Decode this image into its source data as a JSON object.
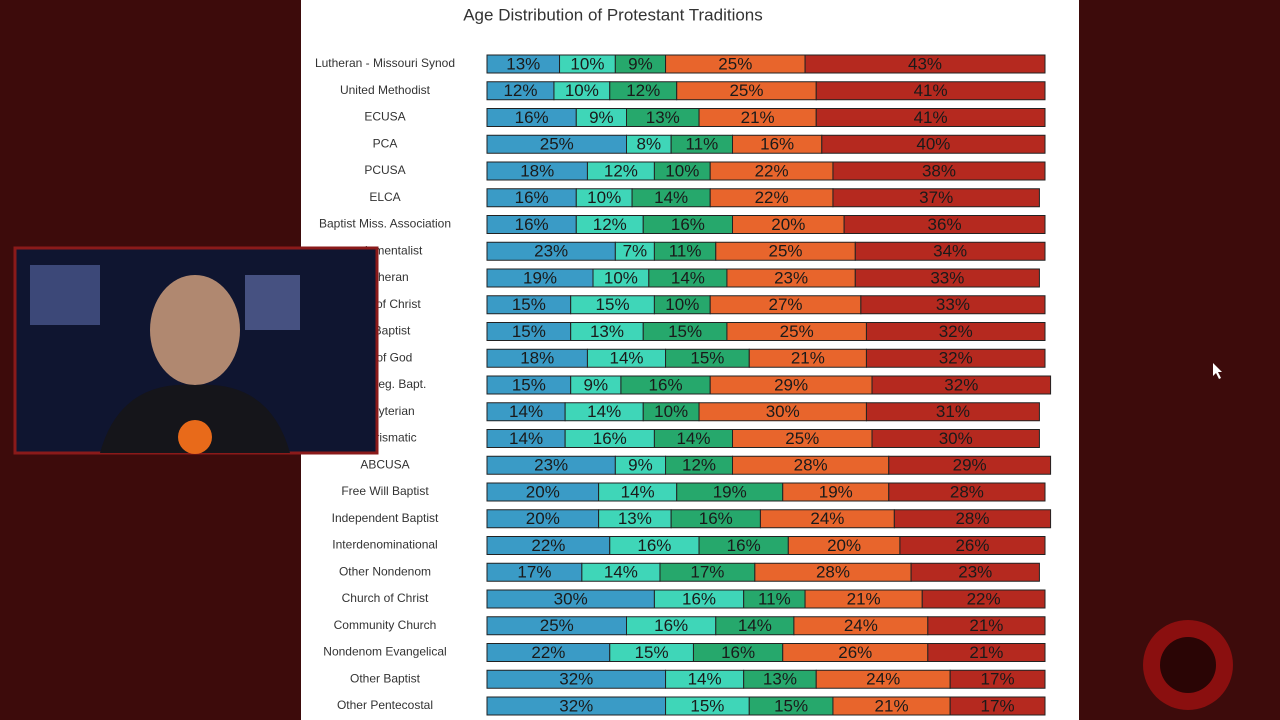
{
  "chart_data": {
    "type": "stacked-bar",
    "title": "Age Distribution of Protestant Traditions",
    "categories": [
      "Lutheran - Missouri Synod",
      "United Methodist",
      "ECUSA",
      "PCA",
      "PCUSA",
      "ELCA",
      "Baptist Miss. Association",
      "undamentalist",
      "Lutheran",
      "urch of Christ",
      "rn Baptist",
      "ies of God",
      "c. of Reg. Bapt.",
      "resbyterian",
      "Charismatic",
      "ABCUSA",
      "Free Will Baptist",
      "Independent Baptist",
      "Interdenominational",
      "Other Nondenom",
      "Church of Christ",
      "Community Church",
      "Nondenom Evangelical",
      "Other Baptist",
      "Other Pentecostal"
    ],
    "xlim": [
      0,
      100
    ],
    "series": [
      {
        "color": "#3a9bc6",
        "values": [
          13,
          12,
          16,
          25,
          18,
          16,
          16,
          23,
          19,
          15,
          15,
          18,
          15,
          14,
          14,
          23,
          20,
          20,
          22,
          17,
          30,
          25,
          22,
          32,
          32
        ],
        "value_labels": [
          "13%",
          "12%",
          "16%",
          "25%",
          "18%",
          "16%",
          "16%",
          "23%",
          "19%",
          "15%",
          "15%",
          "18%",
          "15%",
          "14%",
          "14%",
          "23%",
          "20%",
          "20%",
          "22%",
          "17%",
          "30%",
          "25%",
          "22%",
          "32%",
          "32%"
        ]
      },
      {
        "color": "#3fd6b8",
        "values": [
          10,
          10,
          9,
          8,
          12,
          10,
          12,
          7,
          10,
          15,
          13,
          14,
          9,
          14,
          16,
          9,
          14,
          13,
          16,
          14,
          16,
          16,
          15,
          14,
          15
        ],
        "value_labels": [
          "10%",
          "10%",
          "9%",
          "8%",
          "12%",
          "10%",
          "12%",
          "7%",
          "10%",
          "15%",
          "13%",
          "14%",
          "9%",
          "14%",
          "16%",
          "9%",
          "14%",
          "13%",
          "16%",
          "14%",
          "16%",
          "16%",
          "15%",
          "14%",
          "15%"
        ]
      },
      {
        "color": "#26a86c",
        "values": [
          9,
          12,
          13,
          11,
          10,
          14,
          16,
          11,
          14,
          10,
          15,
          15,
          16,
          10,
          14,
          12,
          19,
          16,
          16,
          17,
          11,
          14,
          16,
          13,
          15
        ],
        "value_labels": [
          "9%",
          "12%",
          "13%",
          "11%",
          "10%",
          "14%",
          "16%",
          "11%",
          "14%",
          "10%",
          "15%",
          "15%",
          "16%",
          "10%",
          "14%",
          "12%",
          "19%",
          "16%",
          "16%",
          "17%",
          "11%",
          "14%",
          "16%",
          "13%",
          "15%"
        ]
      },
      {
        "color": "#e8652c",
        "values": [
          25,
          25,
          21,
          16,
          22,
          22,
          20,
          25,
          23,
          27,
          25,
          21,
          29,
          30,
          25,
          28,
          19,
          24,
          20,
          28,
          21,
          24,
          26,
          24,
          21
        ],
        "value_labels": [
          "25%",
          "25%",
          "21%",
          "16%",
          "22%",
          "22%",
          "20%",
          "25%",
          "23%",
          "27%",
          "25%",
          "21%",
          "29%",
          "30%",
          "25%",
          "28%",
          "19%",
          "24%",
          "20%",
          "28%",
          "21%",
          "24%",
          "26%",
          "24%",
          "21%"
        ]
      },
      {
        "color": "#b5291f",
        "values": [
          43,
          41,
          41,
          40,
          38,
          37,
          36,
          34,
          33,
          33,
          32,
          32,
          32,
          31,
          30,
          29,
          28,
          28,
          26,
          23,
          22,
          21,
          21,
          17,
          17
        ],
        "value_labels": [
          "43%",
          "41%",
          "41%",
          "40%",
          "38%",
          "37%",
          "36%",
          "34%",
          "33%",
          "33%",
          "32%",
          "32%",
          "32%",
          "31%",
          "30%",
          "29%",
          "28%",
          "28%",
          "26%",
          "23%",
          "22%",
          "21%",
          "21%",
          "17%",
          "17%"
        ]
      }
    ]
  }
}
